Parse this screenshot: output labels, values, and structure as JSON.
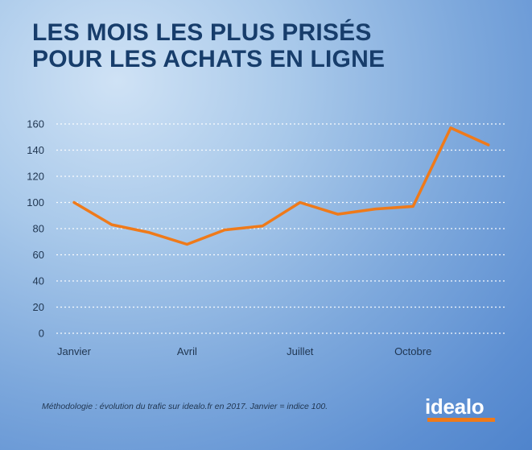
{
  "title_lines": [
    "LES MOIS LES PLUS PRISÉS",
    "POUR LES ACHATS EN LIGNE"
  ],
  "footnote": "Méthodologie : évolution du trafic sur idealo.fr en 2017. Janvier = indice 100.",
  "logo": "idealo",
  "colors": {
    "line": "#ef7a1a",
    "title": "#173d6b",
    "grid": "#ffffff"
  },
  "chart_data": {
    "type": "line",
    "title": "LES MOIS LES PLUS PRISÉS POUR LES ACHATS EN LIGNE",
    "x": [
      1,
      2,
      3,
      4,
      5,
      6,
      7,
      8,
      9,
      10,
      11,
      12
    ],
    "x_tick_labels": [
      {
        "x": 1,
        "label": "Janvier"
      },
      {
        "x": 4,
        "label": "Avril"
      },
      {
        "x": 7,
        "label": "Juillet"
      },
      {
        "x": 10,
        "label": "Octobre"
      }
    ],
    "series": [
      {
        "values": [
          100,
          83,
          77,
          68,
          79,
          82,
          100,
          91,
          95,
          97,
          157,
          144
        ]
      }
    ],
    "ylim": [
      0,
      160
    ],
    "y_ticks": [
      0,
      20,
      40,
      60,
      80,
      100,
      120,
      140,
      160
    ],
    "grid": true,
    "legend": "none"
  }
}
